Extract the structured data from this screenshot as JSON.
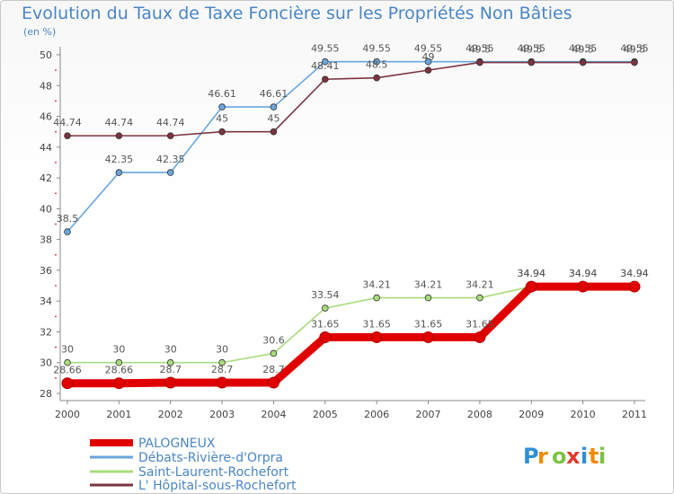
{
  "chart_data": {
    "type": "line",
    "title": "Evolution du Taux de Taxe Foncière sur les Propriétés Non Bâties",
    "ylabel": "(en %)",
    "xlabel": "",
    "x": [
      "2000",
      "2001",
      "2002",
      "2003",
      "2004",
      "2005",
      "2006",
      "2007",
      "2008",
      "2009",
      "2010",
      "2011"
    ],
    "ylim": [
      28,
      50
    ],
    "yticks": [
      28,
      30,
      32,
      34,
      36,
      38,
      40,
      42,
      44,
      46,
      48,
      50
    ],
    "grid": false,
    "legend_position": "bottom-left",
    "series": [
      {
        "name": "PALOGNEUX",
        "color": "#e00000",
        "values": [
          28.66,
          28.66,
          28.7,
          28.7,
          28.7,
          31.65,
          31.65,
          31.65,
          31.65,
          34.94,
          34.94,
          34.94
        ],
        "labels": [
          "28.66",
          "28.66",
          "28.7",
          "28.7",
          "28.7",
          "31.65",
          "31.65",
          "31.65",
          "31.65",
          "34.94",
          "34.94",
          "34.94"
        ]
      },
      {
        "name": "Débats-Rivière-d'Orpra",
        "color": "#6aa6dc",
        "values": [
          38.5,
          42.35,
          42.35,
          46.61,
          46.61,
          49.55,
          49.55,
          49.55,
          49.55,
          49.55,
          49.55,
          49.55
        ],
        "labels": [
          "38.5",
          "42.35",
          "42.35",
          "46.61",
          "46.61",
          "49.55",
          "49.55",
          "49.55",
          "49.55",
          "49.55",
          "49.55",
          "49.55"
        ]
      },
      {
        "name": "Saint-Laurent-Rochefort",
        "color": "#a8dc7c",
        "values": [
          30,
          30,
          30,
          30,
          30.6,
          33.54,
          34.21,
          34.21,
          34.21,
          34.94,
          34.94,
          34.94
        ],
        "labels": [
          "30",
          "30",
          "30",
          "30",
          "30.6",
          "33.54",
          "34.21",
          "34.21",
          "34.21",
          "34.94",
          "34.94",
          "34.94"
        ]
      },
      {
        "name": "L' Hôpital-sous-Rochefort",
        "color": "#7b3440",
        "values": [
          44.74,
          44.74,
          44.74,
          45,
          45,
          48.41,
          48.5,
          49,
          49.5,
          49.5,
          49.5,
          49.5
        ],
        "labels": [
          "44.74",
          "44.74",
          "44.74",
          "45",
          "45",
          "48.41",
          "48.5",
          "49",
          "49.5",
          "49.5",
          "49.5",
          "49.5"
        ]
      }
    ]
  },
  "brand": {
    "text": "Proxiti",
    "letters": [
      "P",
      "r",
      "o",
      "x",
      "i",
      "t",
      "i"
    ],
    "colors": [
      "#2e8fd6",
      "#f08a00",
      "#7cc242",
      "#e23a2c",
      "#2e8fd6",
      "#f08a00",
      "#7cc242"
    ]
  }
}
